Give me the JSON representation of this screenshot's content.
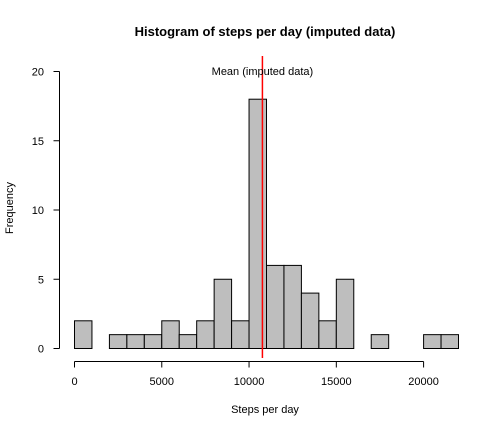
{
  "chart_data": {
    "type": "bar",
    "title": "Histogram of steps per day (imputed data)",
    "xlabel": "Steps per day",
    "ylabel": "Frequency",
    "xlim": [
      0,
      22000
    ],
    "ylim": [
      0,
      20
    ],
    "x_ticks": [
      0,
      5000,
      10000,
      15000,
      20000
    ],
    "y_ticks": [
      0,
      5,
      10,
      15,
      20
    ],
    "bin_width": 1000,
    "bins": [
      {
        "start": 0,
        "end": 1000,
        "count": 2
      },
      {
        "start": 1000,
        "end": 2000,
        "count": 0
      },
      {
        "start": 2000,
        "end": 3000,
        "count": 1
      },
      {
        "start": 3000,
        "end": 4000,
        "count": 1
      },
      {
        "start": 4000,
        "end": 5000,
        "count": 1
      },
      {
        "start": 5000,
        "end": 6000,
        "count": 2
      },
      {
        "start": 6000,
        "end": 7000,
        "count": 1
      },
      {
        "start": 7000,
        "end": 8000,
        "count": 2
      },
      {
        "start": 8000,
        "end": 9000,
        "count": 5
      },
      {
        "start": 9000,
        "end": 10000,
        "count": 2
      },
      {
        "start": 10000,
        "end": 11000,
        "count": 18
      },
      {
        "start": 11000,
        "end": 12000,
        "count": 6
      },
      {
        "start": 12000,
        "end": 13000,
        "count": 6
      },
      {
        "start": 13000,
        "end": 14000,
        "count": 4
      },
      {
        "start": 14000,
        "end": 15000,
        "count": 2
      },
      {
        "start": 15000,
        "end": 16000,
        "count": 5
      },
      {
        "start": 16000,
        "end": 17000,
        "count": 0
      },
      {
        "start": 17000,
        "end": 18000,
        "count": 1
      },
      {
        "start": 18000,
        "end": 19000,
        "count": 0
      },
      {
        "start": 19000,
        "end": 20000,
        "count": 0
      },
      {
        "start": 20000,
        "end": 21000,
        "count": 1
      },
      {
        "start": 21000,
        "end": 22000,
        "count": 1
      }
    ],
    "mean_line": {
      "value": 10766,
      "label": "Mean (imputed data)",
      "color": "#ff0000"
    },
    "bar_fill": "#bebebe",
    "bar_stroke": "#000000",
    "grid": false
  }
}
